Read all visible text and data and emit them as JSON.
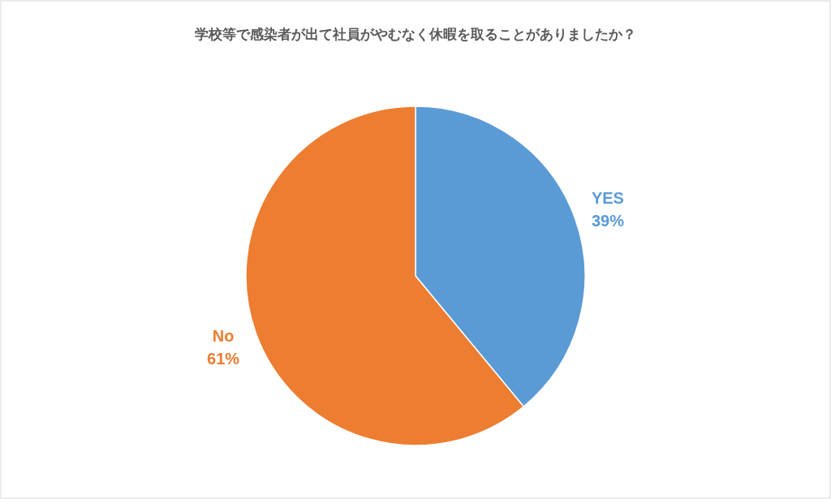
{
  "chart_data": {
    "type": "pie",
    "title": "学校等で感染者が出て社員がやむなく休暇を取ることがありましたか？",
    "categories": [
      "YES",
      "No"
    ],
    "values": [
      39,
      61
    ],
    "value_labels": [
      "39%",
      "61%"
    ],
    "colors": [
      "#5b9bd5",
      "#ed7d31"
    ]
  }
}
